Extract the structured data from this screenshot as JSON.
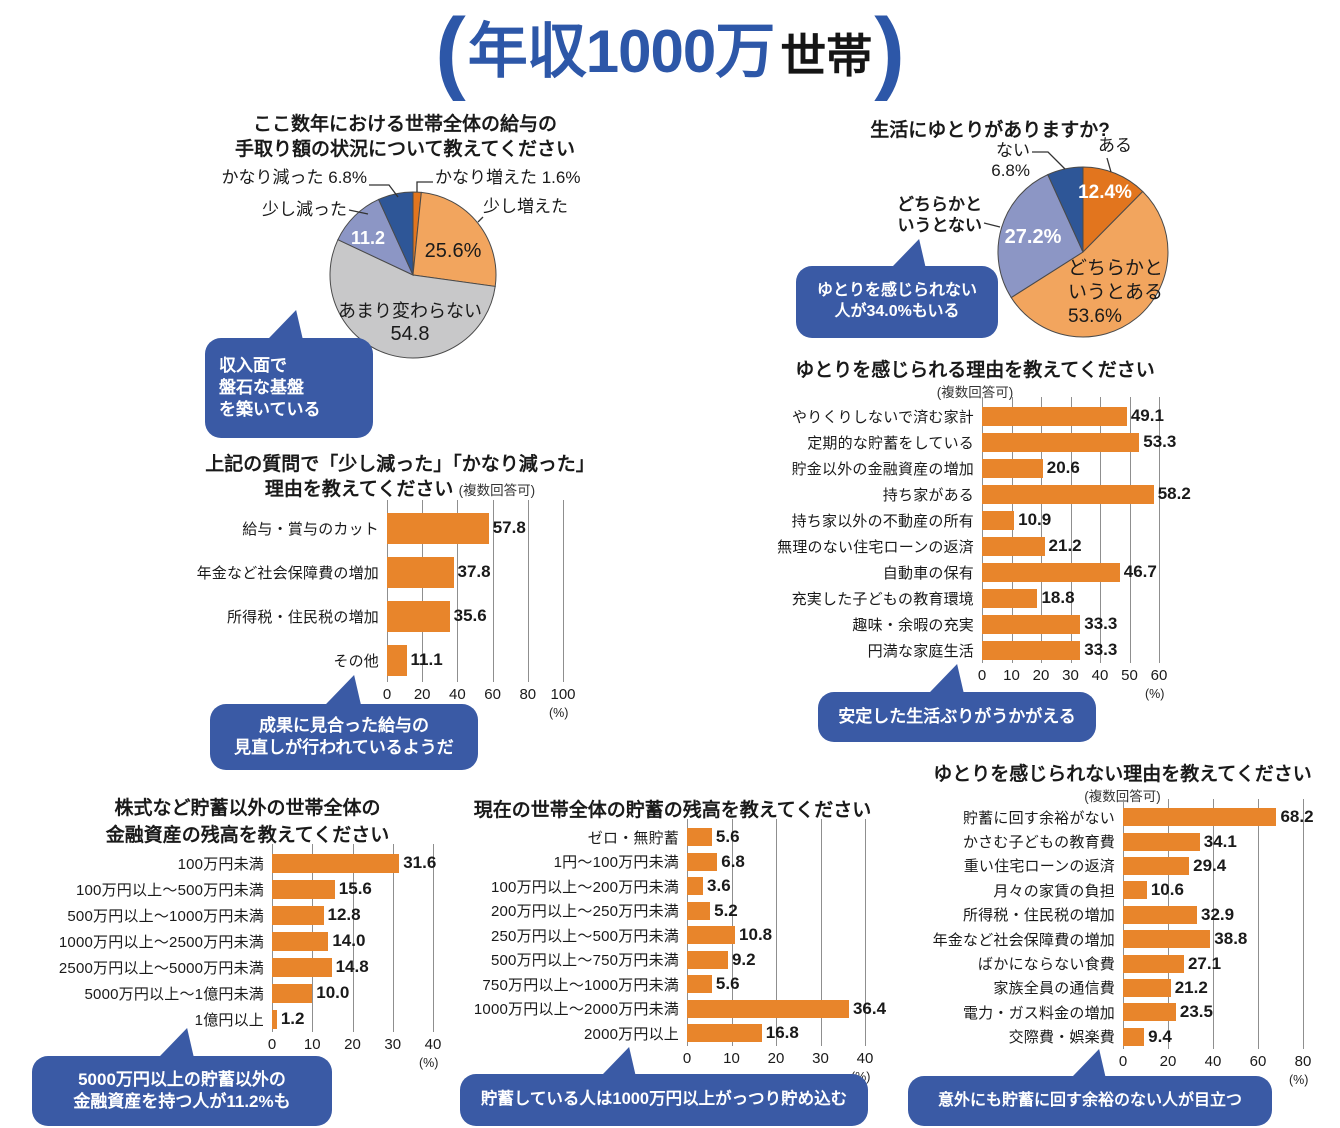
{
  "header": {
    "paren_open": "(",
    "title_main": "年収1000万",
    "title_suffix": "世帯",
    "paren_close": ")"
  },
  "colors": {
    "accent_blue": "#2d57a8",
    "callout_blue": "#3a5aa5",
    "bar_orange": "#e8852b",
    "pie_dark_orange": "#e2751e",
    "pie_light_orange": "#f2a55e",
    "pie_gray": "#c8c8c9",
    "pie_periwinkle": "#8c96c5",
    "pie_dark_blue": "#2e5697"
  },
  "chart_data": [
    {
      "type": "pie",
      "name": "income-change",
      "title_lines": [
        "ここ数年における世帯全体の給与の",
        "手取り額の状況について教えてください"
      ],
      "slices": [
        {
          "label": "かなり増えた",
          "value": "1.6",
          "color": "#e2751e"
        },
        {
          "label": "少し増えた",
          "value": "25.6",
          "color": "#f2a55e"
        },
        {
          "label": "あまり変わらない",
          "value": "54.8",
          "color": "#c8c8c9"
        },
        {
          "label": "少し減った",
          "value": "11.2",
          "color": "#8c96c5"
        },
        {
          "label": "かなり減った",
          "value": "6.8",
          "color": "#2e5697"
        }
      ]
    },
    {
      "type": "pie",
      "name": "life-comfort",
      "title_lines": [
        "生活にゆとりがありますか?"
      ],
      "slices": [
        {
          "label": "ある",
          "value": "12.4",
          "color": "#e2751e"
        },
        {
          "label": "どちらかというとある",
          "value": "53.6",
          "color": "#f2a55e"
        },
        {
          "label": "どちらかというとない",
          "value": "27.2",
          "color": "#8c96c5"
        },
        {
          "label": "ない",
          "value": "6.8",
          "color": "#2e5697"
        }
      ]
    },
    {
      "type": "bar",
      "name": "decrease-reasons",
      "title_lines": [
        "上記の質問で「少し減った」「かなり減った」",
        "理由を教えてください"
      ],
      "subtitle": "(複数回答可)",
      "categories": [
        "給与・賞与のカット",
        "年金など社会保障費の増加",
        "所得税・住民税の増加",
        "その他"
      ],
      "values": [
        "57.8",
        "37.8",
        "35.6",
        "11.1"
      ],
      "ticks": [
        "0",
        "20",
        "40",
        "60",
        "80",
        "100"
      ],
      "xmax": 100,
      "unit": "(%)"
    },
    {
      "type": "bar",
      "name": "comfort-reasons",
      "title_lines": [
        "ゆとりを感じられる理由を教えてください"
      ],
      "subtitle": "(複数回答可)",
      "categories": [
        "やりくりしないで済む家計",
        "定期的な貯蓄をしている",
        "貯金以外の金融資産の増加",
        "持ち家がある",
        "持ち家以外の不動産の所有",
        "無理のない住宅ローンの返済",
        "自動車の保有",
        "充実した子どもの教育環境",
        "趣味・余暇の充実",
        "円満な家庭生活"
      ],
      "values": [
        "49.1",
        "53.3",
        "20.6",
        "58.2",
        "10.9",
        "21.2",
        "46.7",
        "18.8",
        "33.3",
        "33.3"
      ],
      "ticks": [
        "0",
        "10",
        "20",
        "30",
        "40",
        "50",
        "60"
      ],
      "xmax": 60,
      "unit": "(%)"
    },
    {
      "type": "bar",
      "name": "non-savings-assets",
      "title_lines": [
        "株式など貯蓄以外の世帯全体の",
        "金融資産の残高を教えてください"
      ],
      "categories": [
        "100万円未満",
        "100万円以上〜500万円未満",
        "500万円以上〜1000万円未満",
        "1000万円以上〜2500万円未満",
        "2500万円以上〜5000万円未満",
        "5000万円以上〜1億円未満",
        "1億円以上"
      ],
      "values": [
        "31.6",
        "15.6",
        "12.8",
        "14.0",
        "14.8",
        "10.0",
        "1.2"
      ],
      "ticks": [
        "0",
        "10",
        "20",
        "30",
        "40"
      ],
      "xmax": 40,
      "unit": "(%)"
    },
    {
      "type": "bar",
      "name": "savings-balance",
      "title_lines": [
        "現在の世帯全体の貯蓄の残高を教えてください"
      ],
      "categories": [
        "ゼロ・無貯蓄",
        "1円〜100万円未満",
        "100万円以上〜200万円未満",
        "200万円以上〜250万円未満",
        "250万円以上〜500万円未満",
        "500万円以上〜750万円未満",
        "750万円以上〜1000万円未満",
        "1000万円以上〜2000万円未満",
        "2000万円以上"
      ],
      "values": [
        "5.6",
        "6.8",
        "3.6",
        "5.2",
        "10.8",
        "9.2",
        "5.6",
        "36.4",
        "16.8"
      ],
      "ticks": [
        "0",
        "10",
        "20",
        "30",
        "40"
      ],
      "xmax": 40,
      "unit": "(%)"
    },
    {
      "type": "bar",
      "name": "no-comfort-reasons",
      "title_lines": [
        "ゆとりを感じられない理由を教えてください"
      ],
      "subtitle": "(複数回答可)",
      "categories": [
        "貯蓄に回す余裕がない",
        "かさむ子どもの教育費",
        "重い住宅ローンの返済",
        "月々の家賃の負担",
        "所得税・住民税の増加",
        "年金など社会保障費の増加",
        "ばかにならない食費",
        "家族全員の通信費",
        "電力・ガス料金の増加",
        "交際費・娯楽費"
      ],
      "values": [
        "68.2",
        "34.1",
        "29.4",
        "10.6",
        "32.9",
        "38.8",
        "27.1",
        "21.2",
        "23.5",
        "9.4"
      ],
      "ticks": [
        "0",
        "20",
        "40",
        "60",
        "80"
      ],
      "xmax": 80,
      "unit": "(%)"
    }
  ],
  "callouts": [
    {
      "lines": [
        "収入面で",
        "盤石な基盤",
        "を築いている"
      ]
    },
    {
      "lines": [
        "ゆとりを感じられない",
        "人が34.0%もいる"
      ]
    },
    {
      "lines": [
        "成果に見合った給与の",
        "見直しが行われているようだ"
      ]
    },
    {
      "lines": [
        "安定した生活ぶりがうかがえる"
      ]
    },
    {
      "lines": [
        "5000万円以上の貯蓄以外の",
        "金融資産を持つ人が11.2%も"
      ]
    },
    {
      "lines": [
        "貯蓄している人は1000万円以上がっつり貯め込む"
      ]
    },
    {
      "lines": [
        "意外にも貯蓄に回す余裕のない人が目立つ"
      ]
    }
  ]
}
